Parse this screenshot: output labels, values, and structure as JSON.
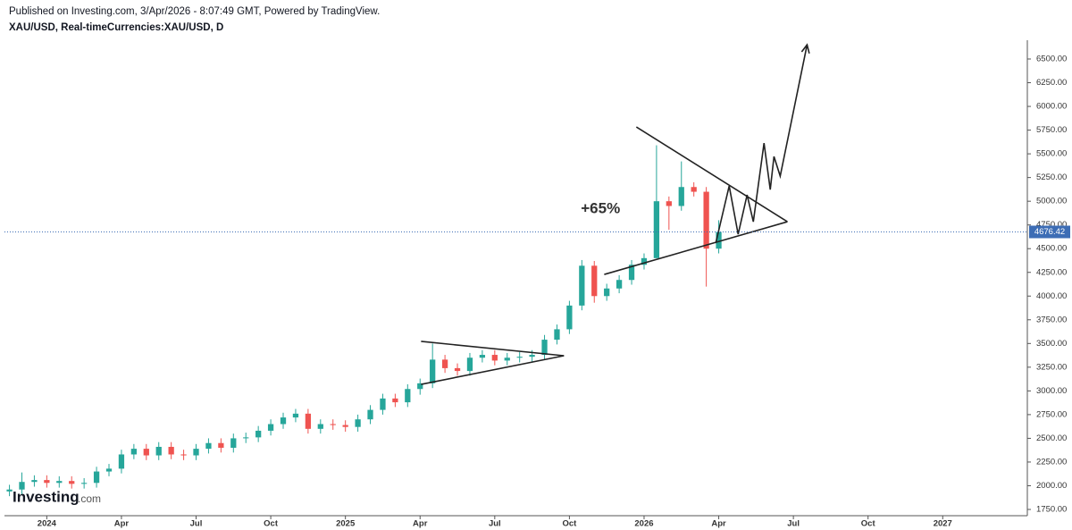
{
  "chart_data": {
    "type": "candlestick",
    "header": "Published on Investing.com, 3/Apr/2026 - 8:07:49 GMT, Powered by TradingView.",
    "title": "XAU/USD, Real-timeCurrencies:XAU/USD, D",
    "logo": "Investing",
    "logo_suffix": ".com",
    "up_color": "#26a69a",
    "down_color": "#ef5350",
    "line_color": "#222222",
    "price_line_color": "#3d6db5",
    "x": [
      -1.5,
      -1,
      -0.5,
      0,
      0.5,
      1,
      1.5,
      2,
      2.5,
      3,
      3.5,
      4,
      4.5,
      5,
      5.5,
      6,
      6.5,
      7,
      7.5,
      8,
      8.5,
      9,
      9.5,
      10,
      10.5,
      11,
      11.5,
      12,
      12.5,
      13,
      13.5,
      14,
      14.5,
      15,
      15.5,
      16,
      16.5,
      17,
      17.5,
      18,
      18.5,
      19,
      19.5,
      20,
      20.5,
      21,
      21.5,
      22,
      22.5,
      23,
      23.5,
      24,
      24.5,
      25,
      25.5,
      26,
      26.5,
      27
    ],
    "open": [
      1940,
      1960,
      2040,
      2060,
      2030,
      2050,
      2020,
      2030,
      2150,
      2180,
      2330,
      2390,
      2320,
      2410,
      2330,
      2320,
      2390,
      2450,
      2400,
      2500,
      2510,
      2580,
      2650,
      2720,
      2760,
      2600,
      2650,
      2640,
      2620,
      2700,
      2800,
      2920,
      2880,
      3020,
      3080,
      3330,
      3240,
      3210,
      3350,
      3380,
      3320,
      3350,
      3360,
      3380,
      3540,
      3650,
      3900,
      4320,
      4000,
      4080,
      4170,
      4330,
      4400,
      5000,
      4950,
      5150,
      5100,
      4500
    ],
    "high": [
      2010,
      2140,
      2110,
      2110,
      2100,
      2100,
      2080,
      2200,
      2230,
      2380,
      2440,
      2440,
      2460,
      2460,
      2380,
      2440,
      2500,
      2500,
      2550,
      2560,
      2630,
      2700,
      2770,
      2810,
      2810,
      2700,
      2700,
      2690,
      2750,
      2850,
      2970,
      2970,
      3070,
      3130,
      3500,
      3380,
      3290,
      3400,
      3430,
      3430,
      3400,
      3410,
      3430,
      3590,
      3700,
      3950,
      4380,
      4370,
      4130,
      4220,
      4380,
      4450,
      5590,
      5050,
      5420,
      5200,
      5150,
      4800
    ],
    "low": [
      1890,
      1910,
      1990,
      1980,
      1980,
      1970,
      1970,
      1980,
      2100,
      2130,
      2280,
      2270,
      2270,
      2280,
      2270,
      2270,
      2340,
      2350,
      2350,
      2450,
      2460,
      2530,
      2600,
      2670,
      2550,
      2550,
      2590,
      2570,
      2570,
      2650,
      2750,
      2830,
      2830,
      2960,
      3030,
      3190,
      3160,
      3160,
      3300,
      3270,
      3270,
      3300,
      3310,
      3330,
      3490,
      3600,
      3850,
      3930,
      3950,
      4030,
      4120,
      4280,
      4400,
      4700,
      4900,
      5050,
      4100,
      4450
    ],
    "close": [
      1960,
      2040,
      2060,
      2030,
      2050,
      2020,
      2030,
      2150,
      2180,
      2330,
      2390,
      2320,
      2410,
      2330,
      2320,
      2390,
      2450,
      2400,
      2500,
      2510,
      2580,
      2650,
      2720,
      2760,
      2600,
      2650,
      2640,
      2620,
      2700,
      2800,
      2920,
      2880,
      3020,
      3080,
      3330,
      3240,
      3210,
      3350,
      3380,
      3320,
      3350,
      3360,
      3380,
      3540,
      3650,
      3900,
      4320,
      4000,
      4080,
      4170,
      4330,
      4400,
      5000,
      4950,
      5150,
      5100,
      4500,
      4676.42
    ],
    "last_price": 4676.42,
    "xlim": [
      -1.7,
      39.4
    ],
    "ylim": [
      1684,
      6698
    ],
    "xticks": [
      {
        "value": 0,
        "label": "2024"
      },
      {
        "value": 3,
        "label": "Apr"
      },
      {
        "value": 6,
        "label": "Jul"
      },
      {
        "value": 9,
        "label": "Oct"
      },
      {
        "value": 12,
        "label": "2025"
      },
      {
        "value": 15,
        "label": "Apr"
      },
      {
        "value": 18,
        "label": "Jul"
      },
      {
        "value": 21,
        "label": "Oct"
      },
      {
        "value": 24,
        "label": "2026"
      },
      {
        "value": 27,
        "label": "Apr"
      },
      {
        "value": 30,
        "label": "Jul"
      },
      {
        "value": 33,
        "label": "Oct"
      },
      {
        "value": 36,
        "label": "2027"
      }
    ],
    "yticks": [
      {
        "value": 1750,
        "label": "1750.00"
      },
      {
        "value": 2000,
        "label": "2000.00"
      },
      {
        "value": 2250,
        "label": "2250.00"
      },
      {
        "value": 2500,
        "label": "2500.00"
      },
      {
        "value": 2750,
        "label": "2750.00"
      },
      {
        "value": 3000,
        "label": "3000.00"
      },
      {
        "value": 3250,
        "label": "3250.00"
      },
      {
        "value": 3500,
        "label": "3500.00"
      },
      {
        "value": 3750,
        "label": "3750.00"
      },
      {
        "value": 4000,
        "label": "4000.00"
      },
      {
        "value": 4250,
        "label": "4250.00"
      },
      {
        "value": 4500,
        "label": "4500.00"
      },
      {
        "value": 4750,
        "label": "4750.00"
      },
      {
        "value": 5000,
        "label": "5000.00"
      },
      {
        "value": 5250,
        "label": "5250.00"
      },
      {
        "value": 5500,
        "label": "5500.00"
      },
      {
        "value": 5750,
        "label": "5750.00"
      },
      {
        "value": 6000,
        "label": "6000.00"
      },
      {
        "value": 6250,
        "label": "6250.00"
      },
      {
        "value": 6500,
        "label": "6500.00"
      }
    ],
    "trendlines": [
      {
        "x": [
          15.04,
          20.78
        ],
        "y": [
          3522,
          3371
        ]
      },
      {
        "x": [
          15.04,
          20.78
        ],
        "y": [
          3069,
          3371
        ]
      },
      {
        "x": [
          23.69,
          29.76
        ],
        "y": [
          5783,
          4784
        ]
      },
      {
        "x": [
          22.4,
          29.76
        ],
        "y": [
          4228,
          4784
        ]
      }
    ],
    "forecast": {
      "x": [
        26.88,
        27.42,
        27.78,
        28.14,
        28.39,
        28.82,
        29.07,
        29.22,
        29.47,
        30.55
      ],
      "y": [
        4558,
        5161,
        4652,
        5067,
        4784,
        5613,
        5123,
        5472,
        5265,
        6650
      ]
    },
    "annotation": {
      "text": "+65%",
      "x": 22.25,
      "y": 4916
    }
  }
}
